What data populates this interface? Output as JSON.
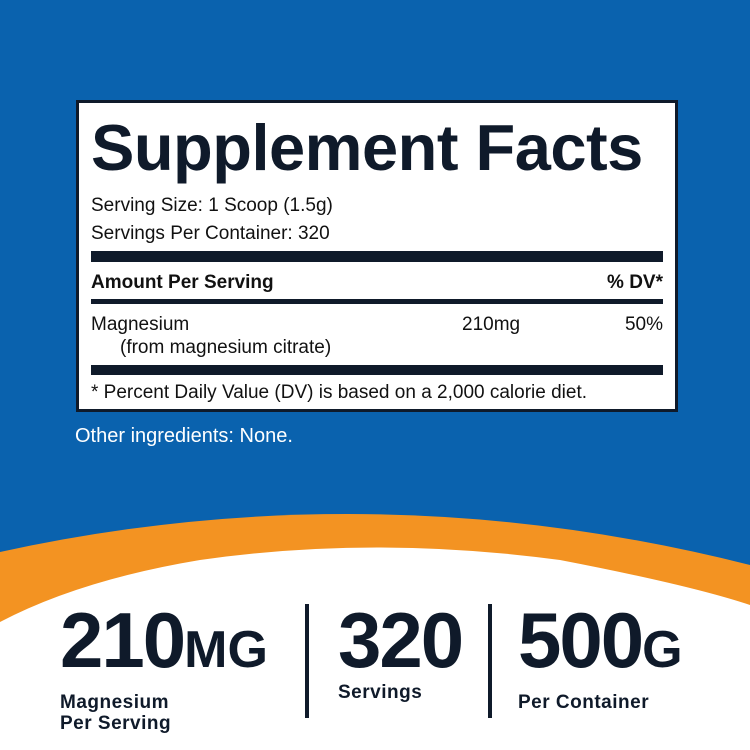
{
  "colors": {
    "background_blue": "#0a62ae",
    "orange": "#f39322",
    "navy": "#0f1a2a"
  },
  "facts": {
    "title": "Supplement Facts",
    "serving_size": "Serving Size: 1 Scoop (1.5g)",
    "servings_per_container": "Servings Per Container: 320",
    "amount_header": "Amount Per Serving",
    "dv_header": "% DV*",
    "nutrient": {
      "name": "Magnesium",
      "source": "(from magnesium citrate)",
      "amount": "210mg",
      "dv": "50%"
    },
    "footnote": "* Percent Daily Value (DV) is based on a 2,000 calorie diet."
  },
  "other_ingredients": "Other ingredients: None.",
  "stats": [
    {
      "value": "210",
      "unit": "MG",
      "label1": "Magnesium",
      "label2": "Per Serving"
    },
    {
      "value": "320",
      "unit": "",
      "label1": "Servings",
      "label2": ""
    },
    {
      "value": "500",
      "unit": "G",
      "label1": "Per Container",
      "label2": ""
    }
  ]
}
